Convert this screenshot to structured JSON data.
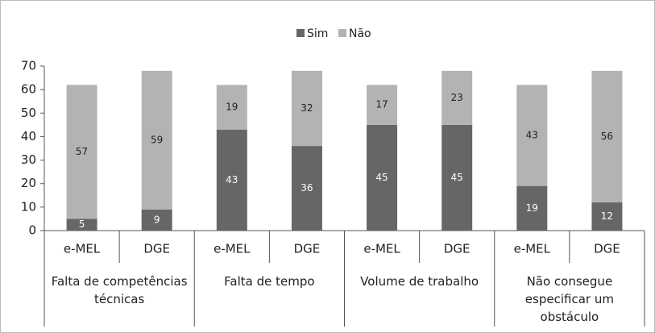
{
  "chart_data": {
    "type": "stacked_bar",
    "categories": [
      "e-MEL",
      "DGE",
      "e-MEL",
      "DGE",
      "e-MEL",
      "DGE",
      "e-MEL",
      "DGE"
    ],
    "groups": [
      "Falta de competências técnicas",
      "Falta de tempo",
      "Volume de trabalho",
      "Não consegue especificar um obstáculo"
    ],
    "series": [
      {
        "name": "Sim",
        "color": "#666666",
        "label_color": "#ffffff",
        "values": [
          5,
          9,
          43,
          36,
          45,
          45,
          19,
          12
        ]
      },
      {
        "name": "Não",
        "color": "#b3b3b3",
        "label_color": "#222222",
        "values": [
          57,
          59,
          19,
          32,
          17,
          23,
          43,
          56
        ]
      }
    ],
    "ylim": [
      0,
      70
    ],
    "yticks": [
      0,
      10,
      20,
      30,
      40,
      50,
      60,
      70
    ],
    "legend": "top"
  }
}
